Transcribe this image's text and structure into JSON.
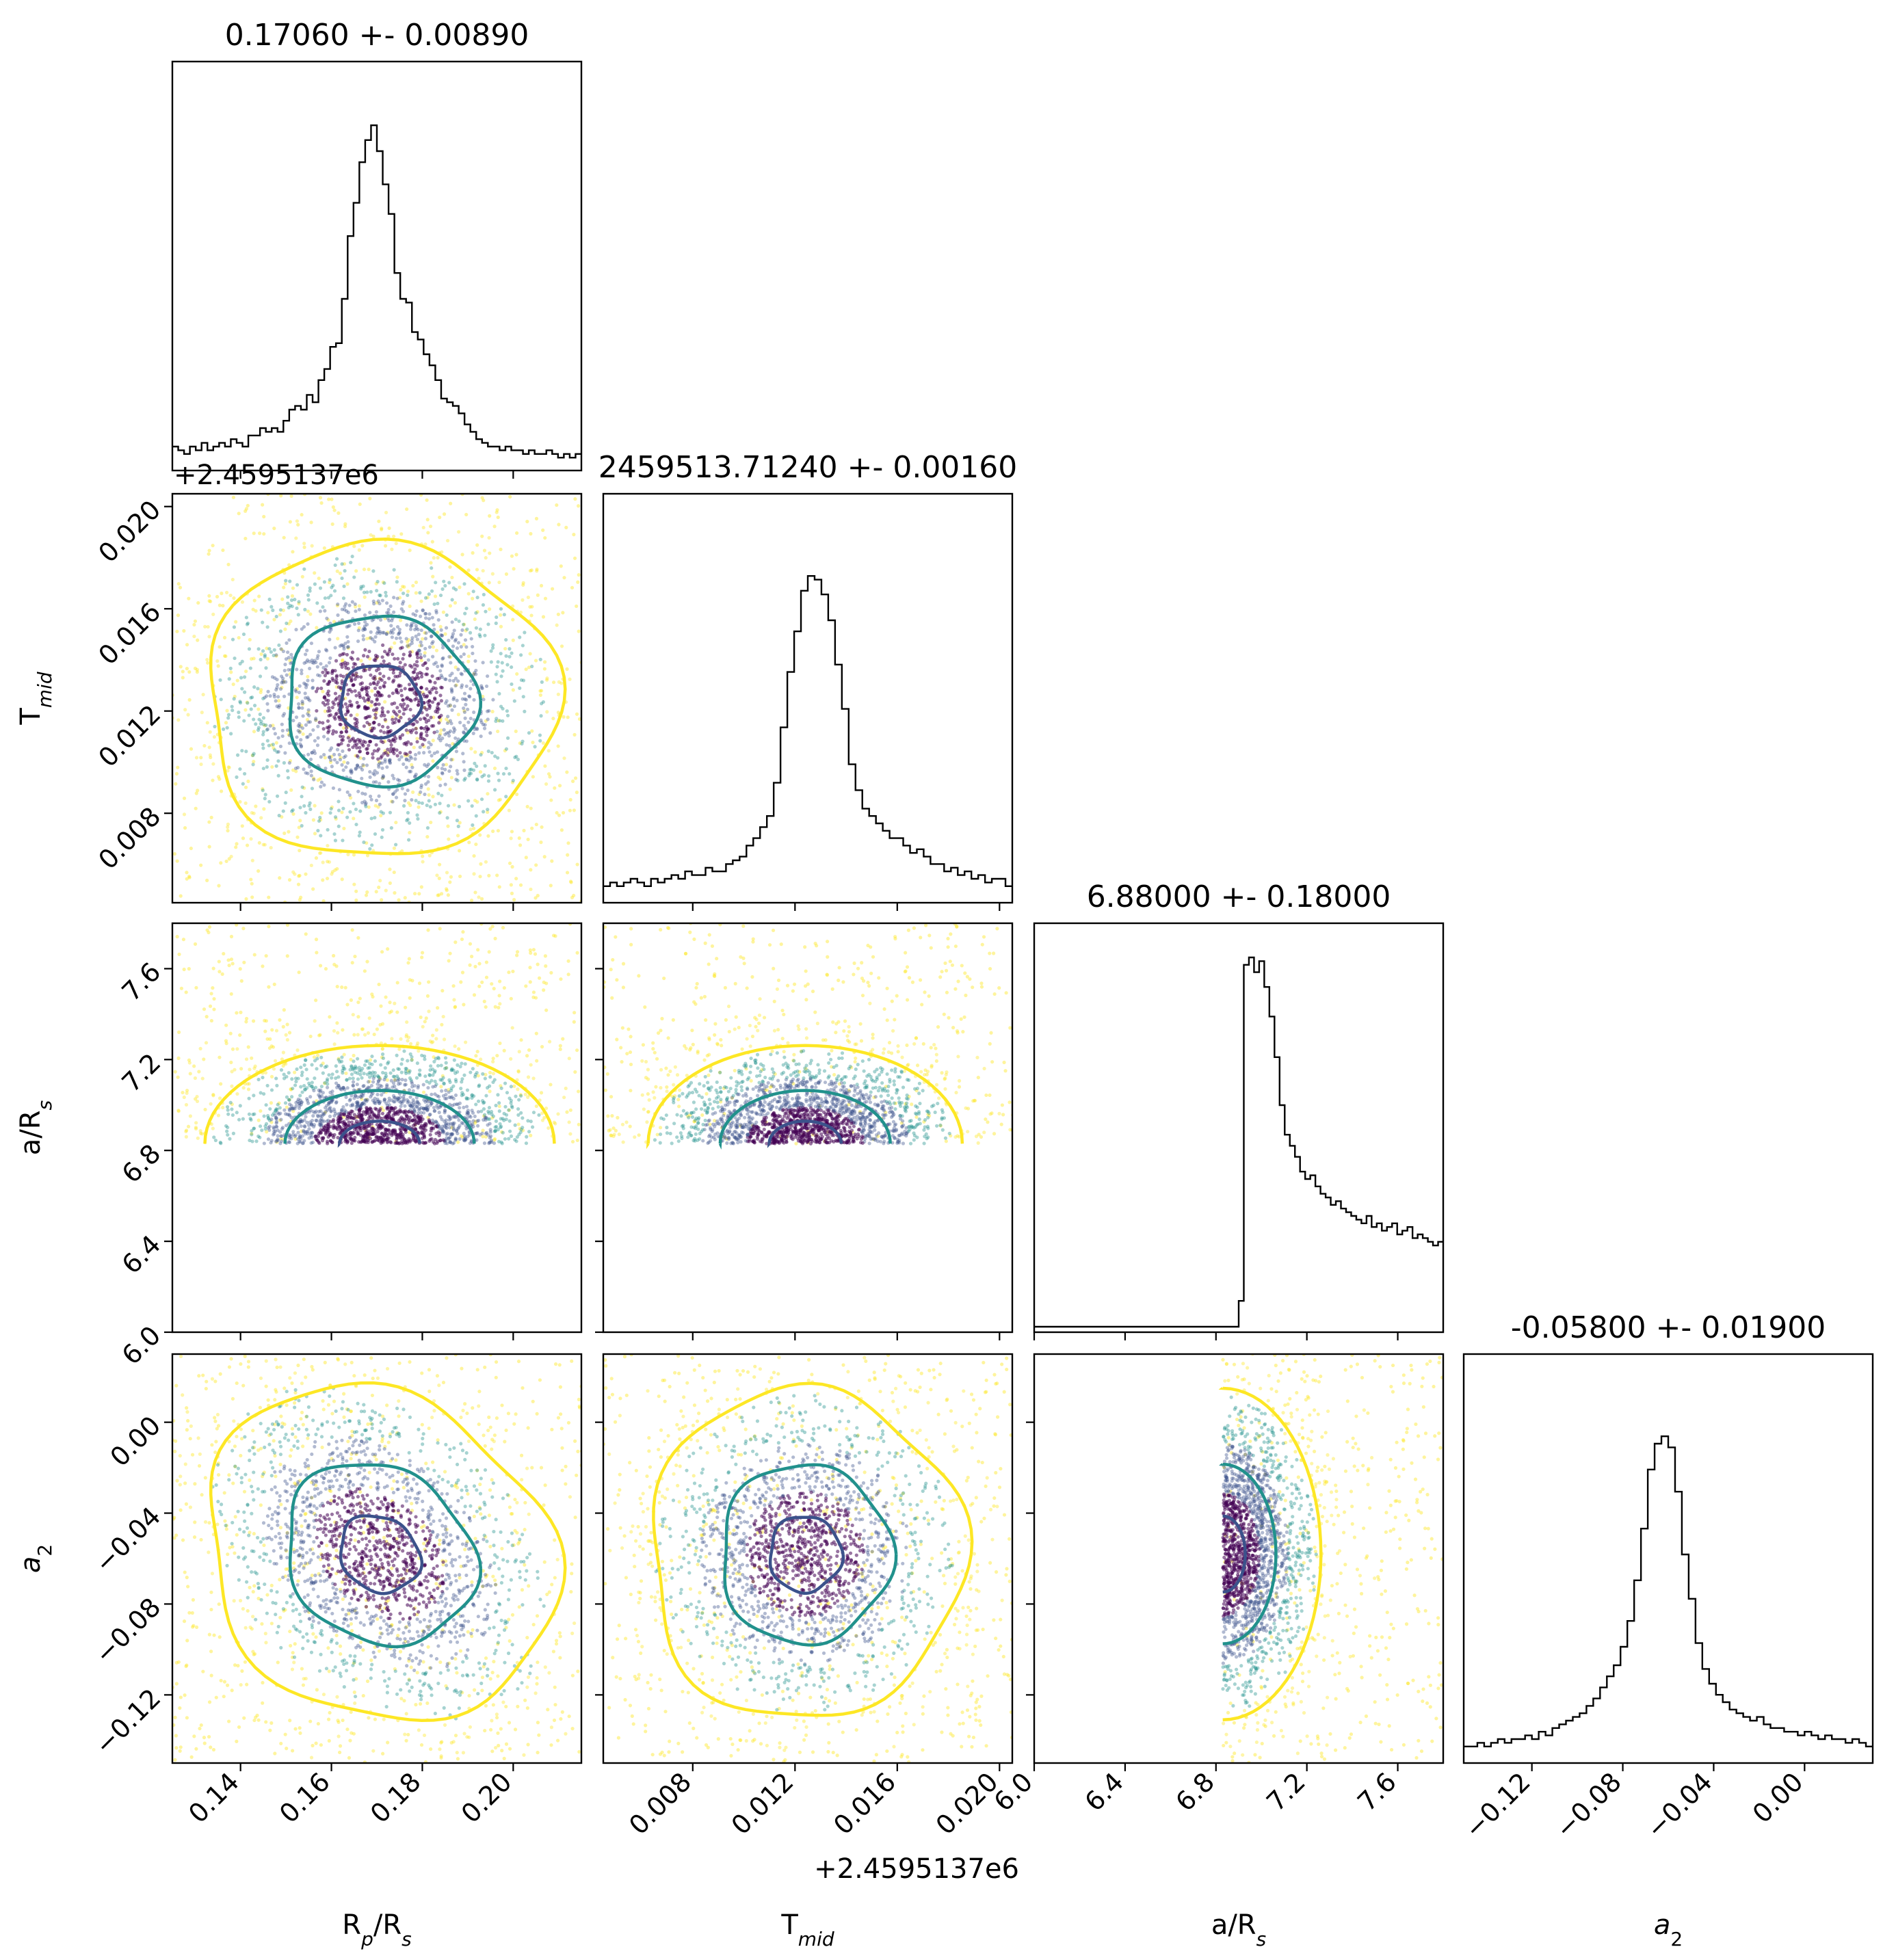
{
  "figure": {
    "offset_label": "+2.4595137e6",
    "colors": {
      "axis": "#000000",
      "hist": "#000000",
      "sigma1": "#3b528b",
      "sigma2": "#21918c",
      "sigma3": "#fde725",
      "scatter_core": "#440154"
    }
  },
  "chart_data": {
    "type": "corner",
    "parameters": [
      {
        "label": "R_p/R_s",
        "title": "0.17060 +- 0.00890",
        "range": [
          0.125,
          0.215
        ],
        "ticks": [
          0.14,
          0.16,
          0.18,
          0.2
        ],
        "tick_labels": [
          "0.14",
          "0.16",
          "0.18",
          "0.20"
        ],
        "median": 0.1706,
        "sigma": 0.0089
      },
      {
        "label": "T_mid",
        "title": "2459513.71240 +- 0.00160",
        "range": [
          0.0045,
          0.0205
        ],
        "ticks": [
          0.008,
          0.012,
          0.016,
          0.02
        ],
        "tick_labels": [
          "0.008",
          "0.012",
          "0.016",
          "0.020"
        ],
        "offset": "+2.4595137e6",
        "median": 0.0124,
        "sigma": 0.0016
      },
      {
        "label": "a/R_s",
        "title": "6.88000 +- 0.18000",
        "range": [
          6.0,
          7.8
        ],
        "ticks": [
          6.0,
          6.4,
          6.8,
          7.2,
          7.6
        ],
        "tick_labels": [
          "6.0",
          "6.4",
          "6.8",
          "7.2",
          "7.6"
        ],
        "median": 6.88,
        "sigma": 0.18
      },
      {
        "label": "a_2",
        "title": "-0.05800 +- 0.01900",
        "range": [
          -0.15,
          0.03
        ],
        "ticks": [
          -0.12,
          -0.08,
          -0.04,
          0.0
        ],
        "tick_labels": [
          "−0.12",
          "−0.08",
          "−0.04",
          "0.00"
        ],
        "median": -0.058,
        "sigma": 0.019
      }
    ],
    "histograms": {
      "R_p/R_s": [
        0.05,
        0.04,
        0.03,
        0.05,
        0.04,
        0.06,
        0.04,
        0.05,
        0.06,
        0.05,
        0.07,
        0.06,
        0.05,
        0.08,
        0.08,
        0.1,
        0.09,
        0.1,
        0.09,
        0.12,
        0.15,
        0.16,
        0.15,
        0.19,
        0.17,
        0.23,
        0.26,
        0.32,
        0.33,
        0.45,
        0.62,
        0.71,
        0.82,
        0.88,
        0.92,
        0.85,
        0.76,
        0.68,
        0.52,
        0.45,
        0.44,
        0.36,
        0.34,
        0.3,
        0.27,
        0.23,
        0.18,
        0.17,
        0.16,
        0.14,
        0.11,
        0.09,
        0.07,
        0.06,
        0.05,
        0.05,
        0.04,
        0.05,
        0.04,
        0.04,
        0.03,
        0.04,
        0.03,
        0.03,
        0.04,
        0.03,
        0.02,
        0.03,
        0.02,
        0.03
      ],
      "T_mid": [
        0.03,
        0.04,
        0.03,
        0.04,
        0.05,
        0.04,
        0.03,
        0.05,
        0.04,
        0.05,
        0.06,
        0.05,
        0.07,
        0.06,
        0.06,
        0.08,
        0.07,
        0.07,
        0.09,
        0.1,
        0.11,
        0.14,
        0.16,
        0.19,
        0.22,
        0.31,
        0.46,
        0.61,
        0.72,
        0.83,
        0.87,
        0.86,
        0.82,
        0.75,
        0.63,
        0.51,
        0.36,
        0.29,
        0.24,
        0.22,
        0.2,
        0.18,
        0.16,
        0.16,
        0.14,
        0.12,
        0.13,
        0.11,
        0.09,
        0.09,
        0.07,
        0.08,
        0.06,
        0.07,
        0.05,
        0.06,
        0.04,
        0.05,
        0.05,
        0.03
      ],
      "a/R_s": [
        0,
        0,
        0,
        0,
        0,
        0,
        0,
        0,
        0,
        0,
        0,
        0,
        0,
        0,
        0,
        0,
        0,
        0,
        0,
        0,
        0,
        0,
        0,
        0,
        0,
        0,
        0,
        0,
        0,
        0,
        0,
        0,
        0,
        0,
        0,
        0,
        0,
        0,
        0,
        0,
        0.07,
        0.98,
        1.0,
        0.96,
        0.99,
        0.92,
        0.84,
        0.73,
        0.6,
        0.52,
        0.49,
        0.46,
        0.42,
        0.4,
        0.41,
        0.38,
        0.36,
        0.35,
        0.33,
        0.34,
        0.32,
        0.31,
        0.3,
        0.29,
        0.28,
        0.3,
        0.27,
        0.28,
        0.26,
        0.27,
        0.28,
        0.25,
        0.26,
        0.27,
        0.24,
        0.25,
        0.24,
        0.23,
        0.22,
        0.23
      ],
      "a_2": [
        0.03,
        0.03,
        0.04,
        0.03,
        0.04,
        0.05,
        0.04,
        0.05,
        0.05,
        0.06,
        0.05,
        0.07,
        0.06,
        0.08,
        0.09,
        0.1,
        0.11,
        0.12,
        0.14,
        0.16,
        0.19,
        0.22,
        0.25,
        0.3,
        0.37,
        0.48,
        0.62,
        0.78,
        0.85,
        0.87,
        0.84,
        0.72,
        0.55,
        0.43,
        0.31,
        0.24,
        0.2,
        0.17,
        0.15,
        0.13,
        0.12,
        0.11,
        0.1,
        0.11,
        0.09,
        0.08,
        0.08,
        0.07,
        0.07,
        0.06,
        0.07,
        0.06,
        0.05,
        0.06,
        0.05,
        0.05,
        0.04,
        0.05,
        0.04,
        0.03
      ]
    },
    "contour_levels": [
      "1-sigma",
      "2-sigma",
      "3-sigma"
    ],
    "grid": false,
    "legend": "none"
  }
}
